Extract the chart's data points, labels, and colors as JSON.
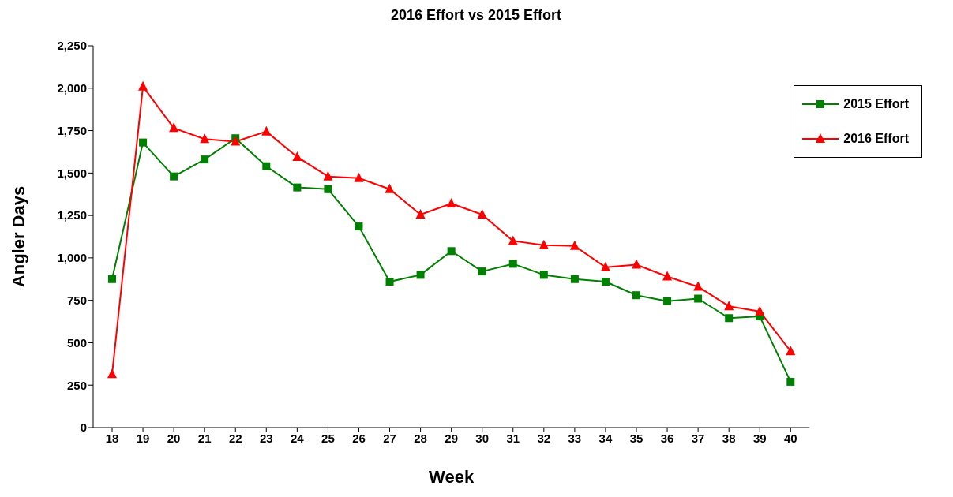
{
  "chart_data": {
    "type": "line",
    "title": "2016 Effort vs 2015 Effort",
    "xlabel": "Week",
    "ylabel": "Angler Days",
    "categories": [
      "18",
      "19",
      "20",
      "21",
      "22",
      "23",
      "24",
      "25",
      "26",
      "27",
      "28",
      "29",
      "30",
      "31",
      "32",
      "33",
      "34",
      "35",
      "36",
      "37",
      "38",
      "39",
      "40"
    ],
    "series": [
      {
        "name": "2015 Effort",
        "color": "#008000",
        "marker": "square",
        "values": [
          875,
          1680,
          1480,
          1580,
          1705,
          1540,
          1415,
          1405,
          1185,
          860,
          900,
          1040,
          920,
          965,
          900,
          875,
          860,
          780,
          745,
          760,
          645,
          655,
          270
        ]
      },
      {
        "name": "2016 Effort",
        "color": "#ff0000",
        "marker": "triangle",
        "values": [
          315,
          2010,
          1765,
          1700,
          1685,
          1745,
          1595,
          1480,
          1470,
          1405,
          1255,
          1320,
          1255,
          1100,
          1075,
          1070,
          945,
          960,
          890,
          830,
          715,
          685,
          450
        ]
      }
    ],
    "ylim": [
      0,
      2250
    ],
    "yticks": [
      {
        "value": 0,
        "label": "0"
      },
      {
        "value": 250,
        "label": "250"
      },
      {
        "value": 500,
        "label": "500"
      },
      {
        "value": 750,
        "label": "750"
      },
      {
        "value": 1000,
        "label": "1,000"
      },
      {
        "value": 1250,
        "label": "1,250"
      },
      {
        "value": 1500,
        "label": "1,500"
      },
      {
        "value": 1750,
        "label": "1,750"
      },
      {
        "value": 2000,
        "label": "2,000"
      },
      {
        "value": 2250,
        "label": "2,250"
      }
    ],
    "grid": false,
    "legend": "top right",
    "line_style": "solid"
  }
}
